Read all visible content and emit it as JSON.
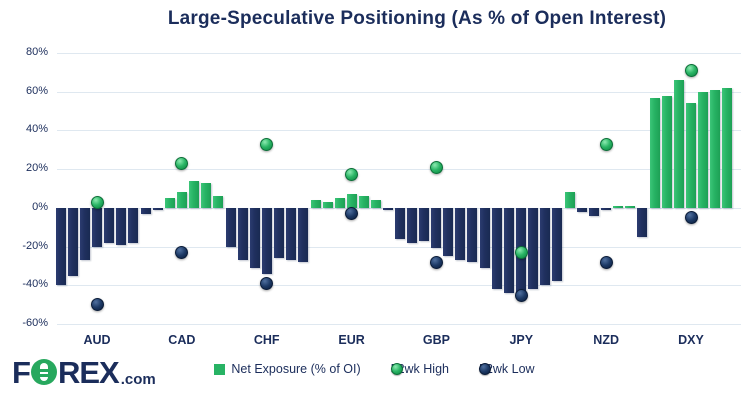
{
  "title": "Large-Speculative Positioning (As % of Open Interest)",
  "colors": {
    "navy": "#20305f",
    "green": "#27b364",
    "grid": "#dfe8f0",
    "text": "#1b2d5b"
  },
  "chart_data": {
    "type": "bar",
    "title": "Large-Speculative Positioning (As % of Open Interest)",
    "xlabel": "",
    "ylabel": "",
    "ylim": [
      -60,
      80
    ],
    "y_ticks": [
      80,
      60,
      40,
      20,
      0,
      -20,
      -40,
      -60
    ],
    "y_tick_suffix": "%",
    "grid": true,
    "legend_position": "bottom",
    "categories": [
      "AUD",
      "CAD",
      "CHF",
      "EUR",
      "GBP",
      "JPY",
      "NZD",
      "DXY"
    ],
    "series_description": "7 net-exposure bars per currency (recent weekly readings) plus 52-week high/low markers",
    "groups": [
      {
        "label": "AUD",
        "bars": [
          -40,
          -35,
          -27,
          -20,
          -18,
          -19,
          -18
        ],
        "high": 3,
        "low": -50
      },
      {
        "label": "CAD",
        "bars": [
          -3,
          -1,
          5,
          8,
          14,
          13,
          6
        ],
        "high": 23,
        "low": -23
      },
      {
        "label": "CHF",
        "bars": [
          -20,
          -27,
          -31,
          -34,
          -26,
          -27,
          -28
        ],
        "high": 33,
        "low": -39
      },
      {
        "label": "EUR",
        "bars": [
          4,
          3,
          5,
          7,
          6,
          4,
          -1
        ],
        "high": 17,
        "low": -3
      },
      {
        "label": "GBP",
        "bars": [
          -16,
          -18,
          -17,
          -21,
          -25,
          -27,
          -28
        ],
        "high": 21,
        "low": -28
      },
      {
        "label": "JPY",
        "bars": [
          -31,
          -42,
          -44,
          -44,
          -42,
          -40,
          -38
        ],
        "high": -23,
        "low": -45
      },
      {
        "label": "NZD",
        "bars": [
          8,
          -2,
          -4,
          -1,
          1,
          1,
          -15
        ],
        "high": 33,
        "low": -28
      },
      {
        "label": "DXY",
        "bars": [
          57,
          58,
          66,
          54,
          60,
          61,
          62
        ],
        "high": 71,
        "low": -5
      }
    ],
    "legend": [
      {
        "label": "Net Exposure (% of OI)",
        "marker": "square",
        "color": "green"
      },
      {
        "label": "52wk High",
        "marker": "dot",
        "color": "green"
      },
      {
        "label": "52wk Low",
        "marker": "dot",
        "color": "navy"
      }
    ]
  },
  "logo": {
    "part1": "F",
    "part2": "REX",
    "suffix": ".com"
  }
}
